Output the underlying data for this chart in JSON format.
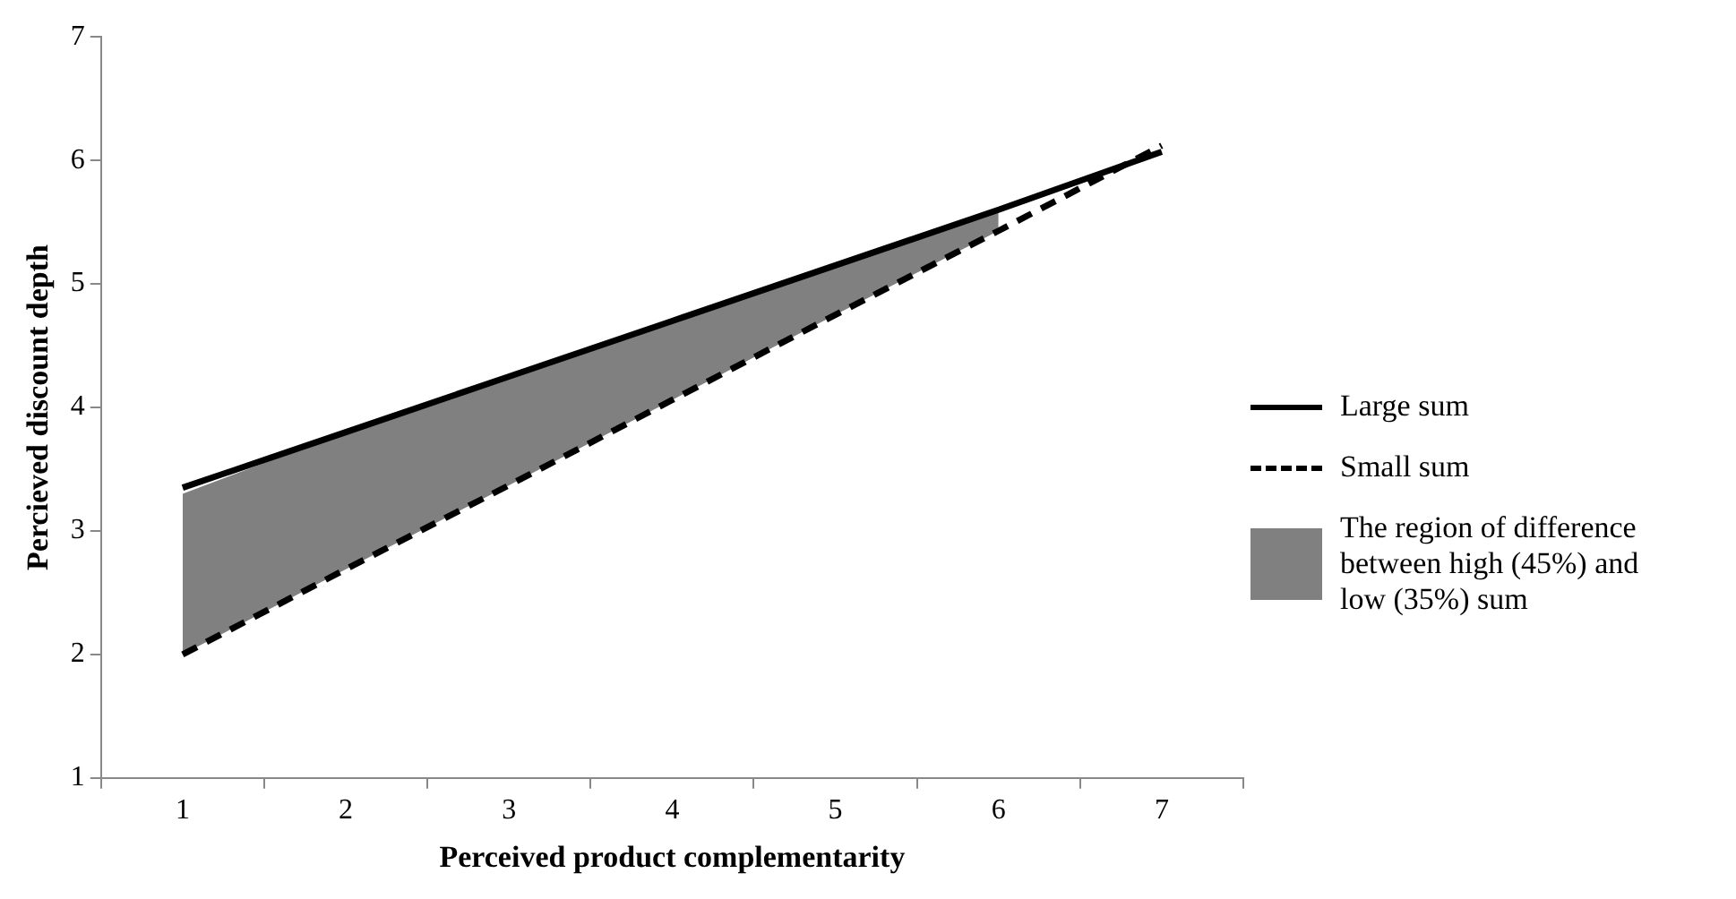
{
  "chart_data": {
    "type": "line",
    "xlabel": "Perceived product complementarity",
    "ylabel": "Percieved discount depth",
    "categories": [
      "1",
      "2",
      "3",
      "4",
      "5",
      "6",
      "7"
    ],
    "series": [
      {
        "name": "The region of difference between high (45%) and low (35%) sum",
        "type": "area",
        "color": "#808080",
        "values": [
          3.3,
          3.8,
          4.25,
          4.7,
          5.15,
          5.6,
          null
        ]
      },
      {
        "name": "Large sum",
        "type": "line",
        "color": "#000000",
        "line_style": "solid",
        "values": [
          3.35,
          3.8,
          4.25,
          4.7,
          5.15,
          5.6,
          6.07
        ]
      },
      {
        "name": "Small sum",
        "type": "line",
        "color": "#000000",
        "line_style": "dashed",
        "values": [
          2.0,
          2.69,
          3.37,
          4.06,
          4.75,
          5.43,
          6.12
        ]
      }
    ],
    "ylim": [
      1,
      7
    ],
    "yticks": [
      1,
      2,
      3,
      4,
      5,
      6,
      7
    ],
    "grid": false,
    "legend": "right",
    "marker": "none"
  }
}
